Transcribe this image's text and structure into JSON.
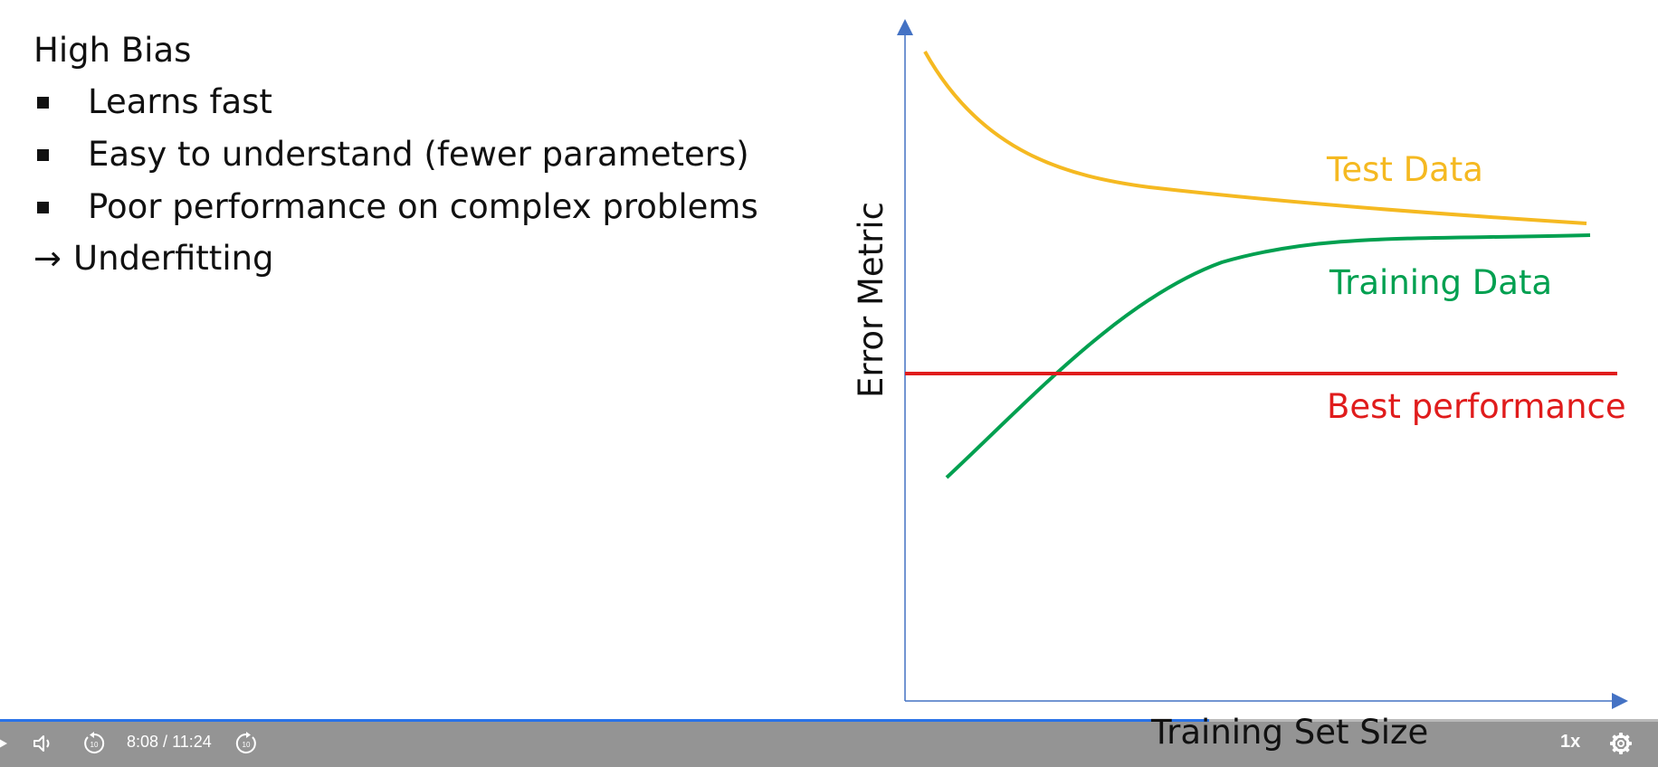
{
  "slide": {
    "title": "High Bias",
    "bullets": [
      "Learns fast",
      "Easy to understand (fewer parameters)",
      "Poor performance on complex problems"
    ],
    "conclusion_arrow": "→",
    "conclusion": "Underfitting"
  },
  "chart_data": {
    "type": "line",
    "title": "",
    "xlabel": "Training Set Size",
    "ylabel": "Error Metric",
    "ticks": "none",
    "series": [
      {
        "name": "Test Data",
        "color": "#f5b921",
        "trend": "decreasing"
      },
      {
        "name": "Training Data",
        "color": "#00a050",
        "trend": "increasing"
      },
      {
        "name": "Best performance",
        "color": "#e01c1c",
        "trend": "constant"
      }
    ],
    "axis_color": "#4472c4"
  },
  "player": {
    "current_time": "8:08",
    "separator": " / ",
    "duration": "11:24",
    "progress_fraction": 0.729,
    "rewind_label": "10",
    "forward_label": "10",
    "speed": "1x",
    "icons": [
      "play-icon",
      "volume-icon",
      "rewind-10-icon",
      "forward-10-icon",
      "settings-gear-icon"
    ]
  }
}
